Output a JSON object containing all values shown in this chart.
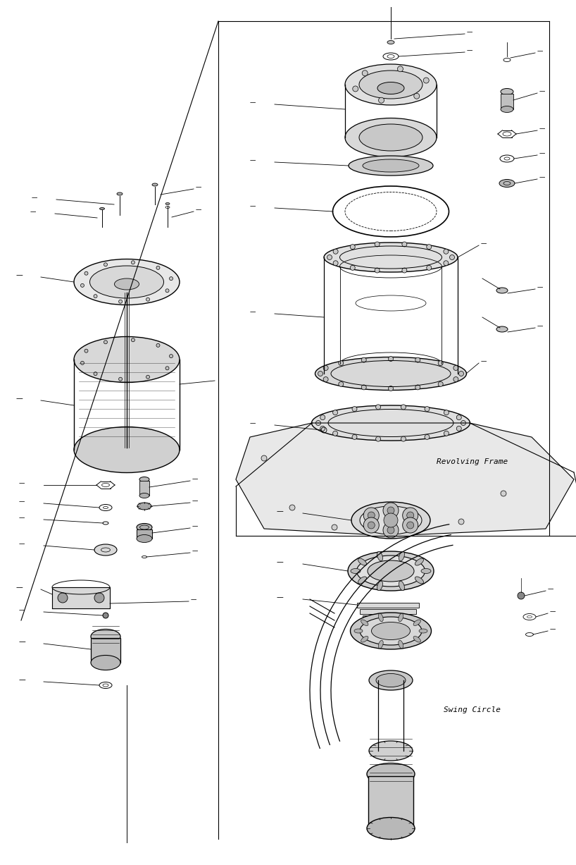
{
  "bg_color": "#ffffff",
  "line_color": "#000000",
  "line_width": 0.8,
  "text_color": "#000000",
  "fig_width": 8.18,
  "fig_height": 12.27,
  "dpi": 100,
  "labels": {
    "revolving_frame": "Revolving Frame",
    "swing_circle": "Swing Circle"
  }
}
